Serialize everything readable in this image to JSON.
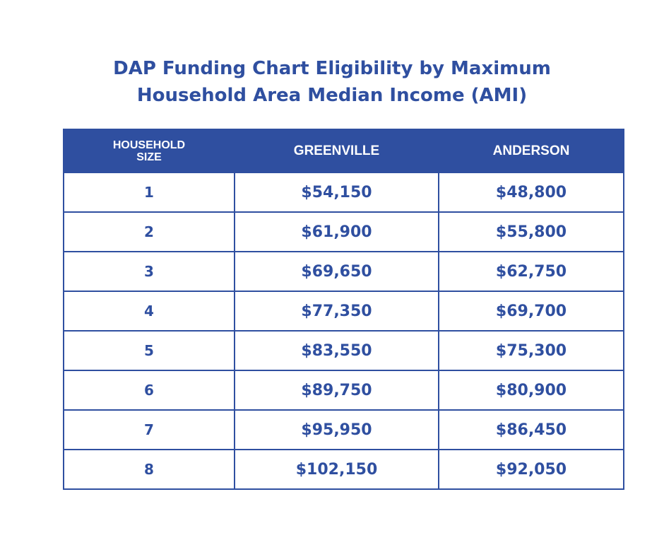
{
  "title": {
    "line1": "DAP Funding Chart Eligibility by Maximum",
    "line2": "Household Area Median Income (AMI)"
  },
  "table": {
    "headers": {
      "size_line1": "HOUSEHOLD",
      "size_line2": "SIZE",
      "greenville": "GREENVILLE",
      "anderson": "ANDERSON"
    },
    "rows": [
      {
        "size": "1",
        "greenville": "$54,150",
        "anderson": "$48,800"
      },
      {
        "size": "2",
        "greenville": "$61,900",
        "anderson": "$55,800"
      },
      {
        "size": "3",
        "greenville": "$69,650",
        "anderson": "$62,750"
      },
      {
        "size": "4",
        "greenville": "$77,350",
        "anderson": "$69,700"
      },
      {
        "size": "5",
        "greenville": "$83,550",
        "anderson": "$75,300"
      },
      {
        "size": "6",
        "greenville": "$89,750",
        "anderson": "$80,900"
      },
      {
        "size": "7",
        "greenville": "$95,950",
        "anderson": "$86,450"
      },
      {
        "size": "8",
        "greenville": "$102,150",
        "anderson": "$92,050"
      }
    ]
  },
  "colors": {
    "primary": "#2f4fa0",
    "background": "#ffffff"
  }
}
